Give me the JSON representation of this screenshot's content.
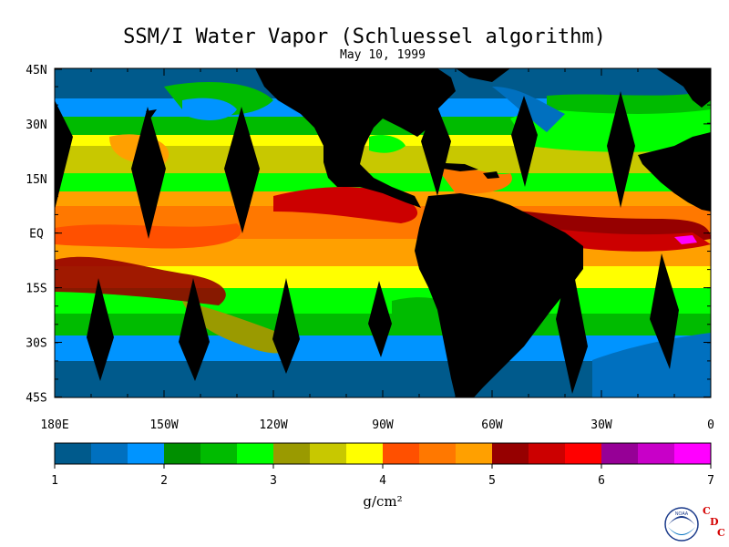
{
  "title": "SSM/I Water Vapor (Schluessel algorithm)",
  "subtitle": "May 10, 1999",
  "lat_labels": [
    "45N",
    "30N",
    "15N",
    "EQ",
    "15S",
    "30S",
    "45S"
  ],
  "lon_labels": [
    "180E",
    "150W",
    "120W",
    "90W",
    "60W",
    "30W",
    "0"
  ],
  "colorbar": {
    "ticks": [
      "1",
      "2",
      "3",
      "4",
      "5",
      "6",
      "7"
    ],
    "units": "g/cm²",
    "colors": [
      "#005a8c",
      "#0070bf",
      "#0094ff",
      "#008f00",
      "#00bb00",
      "#00ff00",
      "#9a9a00",
      "#c8c800",
      "#ffff00",
      "#ff5000",
      "#ff7800",
      "#ffa000",
      "#960000",
      "#cc0000",
      "#ff0000",
      "#960096",
      "#c800c8",
      "#ff00ff"
    ]
  },
  "logos": {
    "noaa": "NOAA",
    "cdc_letters": [
      "C",
      "D",
      "C"
    ]
  }
}
